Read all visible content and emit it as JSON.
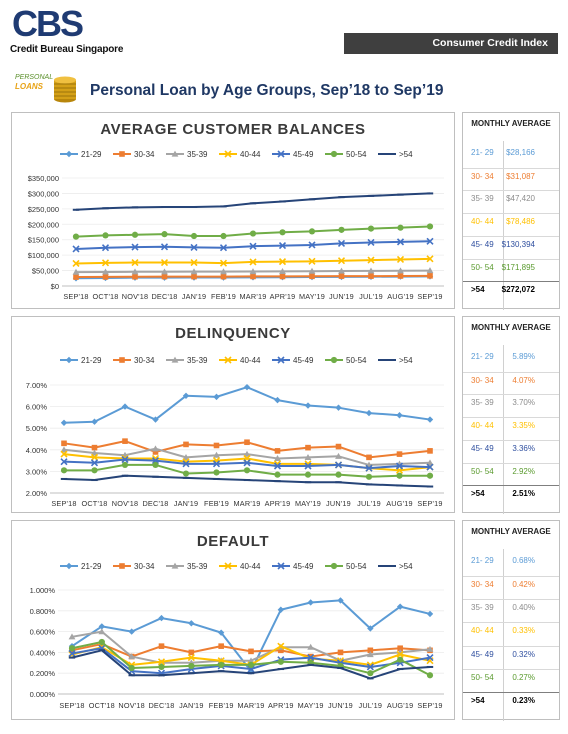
{
  "brand": {
    "logo_text": "CBS",
    "logo_subtitle": "Credit Bureau Singapore",
    "header_label": "Consumer Credit Index",
    "icon_text_1": "PERSONAL",
    "icon_text_2": "LOANS"
  },
  "page_title": "Personal Loan by Age Groups, Sep’18 to Sep’19",
  "colors": {
    "21-29": "#5b9bd5",
    "30-34": "#ed7d31",
    "35-39": "#a5a5a5",
    "40-44": "#ffc000",
    "45-49": "#4472c4",
    "50-54": "#70ad47",
    ">54": "#264478"
  },
  "chart_data": [
    {
      "type": "line",
      "title": "AVERAGE CUSTOMER BALANCES",
      "x": [
        "SEP'18",
        "OCT'18",
        "NOV'18",
        "DEC'18",
        "JAN'19",
        "FEB'19",
        "MAR'19",
        "APR'19",
        "MAY'19",
        "JUN'19",
        "JUL'19",
        "AUG'19",
        "SEP'19"
      ],
      "y_ticks": [
        "$0",
        "$50,000",
        "$100,000",
        "$150,000",
        "$200,000",
        "$250,000",
        "$300,000",
        "$350,000"
      ],
      "ylim": [
        0,
        350000
      ],
      "legend": "top",
      "series": [
        {
          "name": "21-29",
          "values": [
            25000,
            26000,
            27000,
            27000,
            27500,
            27500,
            28000,
            28500,
            29000,
            29500,
            30000,
            30500,
            31000
          ]
        },
        {
          "name": "30-34",
          "values": [
            29000,
            29500,
            30000,
            30500,
            30500,
            30500,
            31000,
            31000,
            31500,
            32000,
            32000,
            32500,
            33000
          ]
        },
        {
          "name": "35-39",
          "values": [
            45000,
            45500,
            46000,
            46000,
            46500,
            46500,
            47000,
            47500,
            48000,
            48500,
            49000,
            49500,
            50000
          ]
        },
        {
          "name": "40-44",
          "values": [
            73000,
            75000,
            76000,
            76000,
            76000,
            74000,
            78000,
            79000,
            80000,
            82000,
            84000,
            86000,
            88000
          ]
        },
        {
          "name": "45-49",
          "values": [
            120000,
            124000,
            126000,
            127000,
            125000,
            124000,
            129000,
            131000,
            133000,
            138000,
            141000,
            143000,
            145000
          ]
        },
        {
          "name": "50-54",
          "values": [
            160000,
            164000,
            166000,
            168000,
            162000,
            162000,
            170000,
            174000,
            177000,
            182000,
            186000,
            189000,
            193000
          ]
        },
        {
          "name": ">54",
          "values": [
            247000,
            252000,
            255000,
            256000,
            256000,
            258000,
            268000,
            274000,
            281000,
            288000,
            292000,
            296000,
            300000
          ]
        }
      ]
    },
    {
      "type": "line",
      "title": "DELINQUENCY",
      "x": [
        "SEP'18",
        "OCT'18",
        "NOV'18",
        "DEC'18",
        "JAN'19",
        "FEB'19",
        "MAR'19",
        "APR'19",
        "MAY'19",
        "JUN'19",
        "JUL'19",
        "AUG'19",
        "SEP'19"
      ],
      "y_ticks": [
        "2.00%",
        "3.00%",
        "4.00%",
        "5.00%",
        "6.00%",
        "7.00%"
      ],
      "ylim": [
        2,
        7
      ],
      "legend": "top",
      "series": [
        {
          "name": "21-29",
          "values": [
            5.25,
            5.3,
            6.0,
            5.4,
            6.5,
            6.45,
            6.9,
            6.3,
            6.05,
            5.95,
            5.7,
            5.6,
            5.4
          ]
        },
        {
          "name": "30-34",
          "values": [
            4.3,
            4.1,
            4.4,
            3.9,
            4.25,
            4.2,
            4.35,
            3.95,
            4.1,
            4.15,
            3.65,
            3.8,
            3.95
          ]
        },
        {
          "name": "35-39",
          "values": [
            4.0,
            3.85,
            3.75,
            4.05,
            3.65,
            3.75,
            3.8,
            3.6,
            3.65,
            3.7,
            3.3,
            3.35,
            3.4
          ]
        },
        {
          "name": "40-44",
          "values": [
            3.8,
            3.65,
            3.6,
            3.6,
            3.45,
            3.5,
            3.6,
            3.35,
            3.35,
            3.3,
            3.15,
            3.05,
            3.2
          ]
        },
        {
          "name": "45-49",
          "values": [
            3.45,
            3.4,
            3.55,
            3.5,
            3.35,
            3.35,
            3.4,
            3.25,
            3.25,
            3.3,
            3.15,
            3.25,
            3.2
          ]
        },
        {
          "name": "50-54",
          "values": [
            3.05,
            3.05,
            3.3,
            3.3,
            2.9,
            2.95,
            3.05,
            2.85,
            2.85,
            2.85,
            2.75,
            2.8,
            2.8
          ]
        },
        {
          "name": ">54",
          "values": [
            2.65,
            2.6,
            2.8,
            2.75,
            2.7,
            2.65,
            2.6,
            2.55,
            2.5,
            2.5,
            2.4,
            2.35,
            2.3
          ]
        }
      ]
    },
    {
      "type": "line",
      "title": "DEFAULT",
      "x": [
        "SEP'18",
        "OCT'18",
        "NOV'18",
        "DEC'18",
        "JAN'19",
        "FEB'19",
        "MAR'19",
        "APR'19",
        "MAY'19",
        "JUN'19",
        "JUL'19",
        "AUG'19",
        "SEP'19"
      ],
      "y_ticks": [
        "0.000%",
        "0.200%",
        "0.400%",
        "0.600%",
        "0.800%",
        "1.000%"
      ],
      "ylim": [
        0,
        1
      ],
      "legend": "top",
      "series": [
        {
          "name": "21-29",
          "values": [
            0.46,
            0.65,
            0.6,
            0.73,
            0.68,
            0.59,
            0.22,
            0.81,
            0.88,
            0.9,
            0.63,
            0.84,
            0.77
          ]
        },
        {
          "name": "30-34",
          "values": [
            0.42,
            0.48,
            0.36,
            0.46,
            0.4,
            0.46,
            0.41,
            0.42,
            0.36,
            0.4,
            0.42,
            0.44,
            0.42
          ]
        },
        {
          "name": "35-39",
          "values": [
            0.55,
            0.6,
            0.36,
            0.3,
            0.3,
            0.32,
            0.32,
            0.45,
            0.45,
            0.32,
            0.38,
            0.4,
            0.43
          ]
        },
        {
          "name": "40-44",
          "values": [
            0.38,
            0.45,
            0.28,
            0.31,
            0.35,
            0.32,
            0.28,
            0.46,
            0.34,
            0.32,
            0.28,
            0.38,
            0.32
          ]
        },
        {
          "name": "45-49",
          "values": [
            0.39,
            0.44,
            0.22,
            0.2,
            0.24,
            0.27,
            0.24,
            0.33,
            0.35,
            0.3,
            0.26,
            0.3,
            0.35
          ]
        },
        {
          "name": "50-54",
          "values": [
            0.44,
            0.5,
            0.25,
            0.26,
            0.27,
            0.28,
            0.28,
            0.31,
            0.3,
            0.27,
            0.2,
            0.33,
            0.18
          ]
        },
        {
          "name": ">54",
          "values": [
            0.35,
            0.42,
            0.18,
            0.18,
            0.2,
            0.22,
            0.2,
            0.24,
            0.28,
            0.25,
            0.15,
            0.24,
            0.26
          ]
        }
      ]
    }
  ],
  "monthly_average": [
    {
      "header": "MONTHLY AVERAGE",
      "rows": [
        {
          "age": "21- 29",
          "value": "$28,166"
        },
        {
          "age": "30- 34",
          "value": "$31,087"
        },
        {
          "age": "35- 39",
          "value": "$47,420"
        },
        {
          "age": "40- 44",
          "value": "$78,486"
        },
        {
          "age": "45- 49",
          "value": "$130,394"
        },
        {
          "age": "50- 54",
          "value": "$171,895"
        },
        {
          "age": ">54",
          "value": "$272,072"
        }
      ]
    },
    {
      "header": "MONTHLY AVERAGE",
      "rows": [
        {
          "age": "21- 29",
          "value": "5.89%"
        },
        {
          "age": "30- 34",
          "value": "4.07%"
        },
        {
          "age": "35- 39",
          "value": "3.70%"
        },
        {
          "age": "40- 44",
          "value": "3.35%"
        },
        {
          "age": "45- 49",
          "value": "3.36%"
        },
        {
          "age": "50- 54",
          "value": "2.92%"
        },
        {
          "age": ">54",
          "value": "2.51%"
        }
      ]
    },
    {
      "header": "MONTHLY AVERAGE",
      "rows": [
        {
          "age": "21- 29",
          "value": "0.68%"
        },
        {
          "age": "30- 34",
          "value": "0.42%"
        },
        {
          "age": "35- 39",
          "value": "0.40%"
        },
        {
          "age": "40- 44",
          "value": "0.33%"
        },
        {
          "age": "45- 49",
          "value": "0.32%"
        },
        {
          "age": "50- 54",
          "value": "0.27%"
        },
        {
          "age": ">54",
          "value": "0.23%"
        }
      ]
    }
  ]
}
